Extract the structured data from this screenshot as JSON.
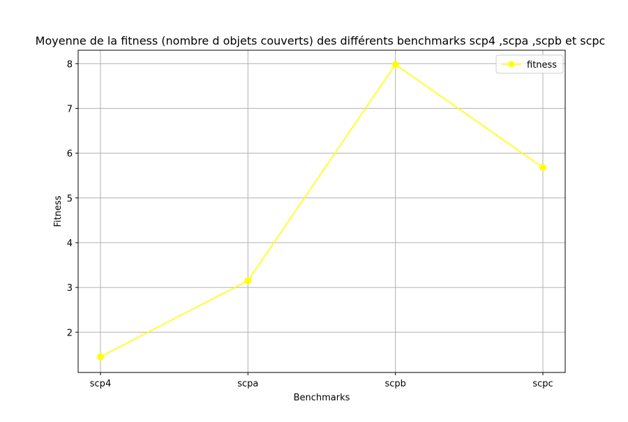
{
  "chart_data": {
    "type": "line",
    "title": "Moyenne de la fitness  (nombre d objets couverts) des différents benchmarks scp4 ,scpa ,scpb et scpc",
    "xlabel": "Benchmarks",
    "ylabel": "Fitness",
    "categories": [
      "scp4",
      "scpa",
      "scpb",
      "scpc"
    ],
    "series": [
      {
        "name": "fitness",
        "values": [
          1.45,
          3.15,
          7.98,
          5.68
        ],
        "color": "#ffff00"
      }
    ],
    "ylim": [
      1.1,
      8.3
    ],
    "yticks": [
      2,
      3,
      4,
      5,
      6,
      7,
      8
    ],
    "grid": true,
    "legend": "top-right"
  }
}
